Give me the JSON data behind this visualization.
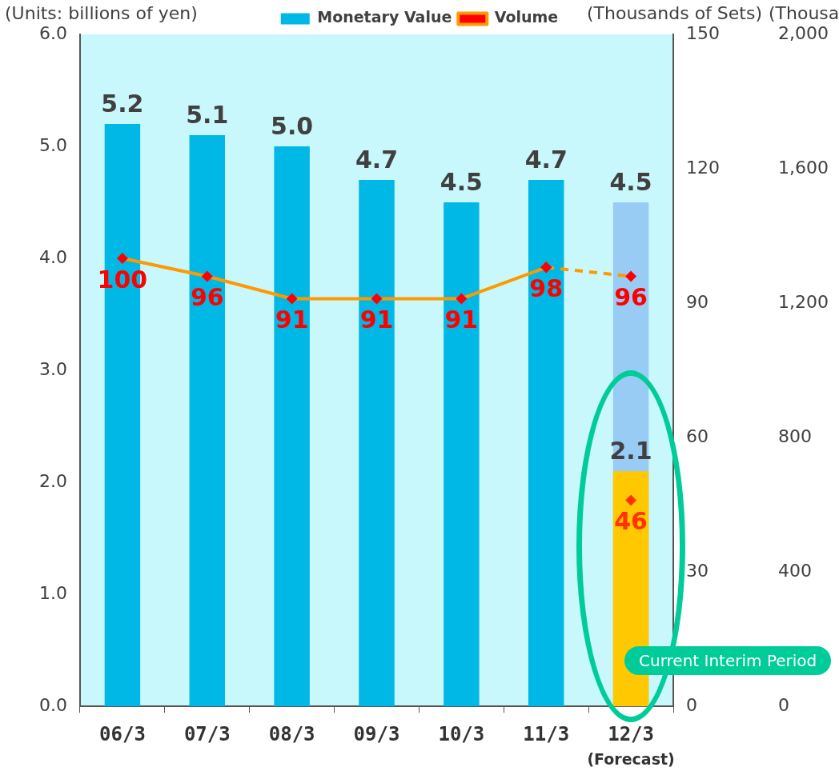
{
  "chart_data": {
    "type": "bar",
    "categories": [
      "06/3",
      "07/3",
      "08/3",
      "09/3",
      "10/3",
      "11/3",
      "12/3"
    ],
    "series": [
      {
        "name": "Monetary Value",
        "colors": [
          "#00b8e6",
          "#00b8e6",
          "#00b8e6",
          "#00b8e6",
          "#00b8e6",
          "#00b8e6",
          "#99ccf5"
        ],
        "values": [
          5.2,
          5.1,
          5.0,
          4.7,
          4.5,
          4.7,
          4.5
        ],
        "value_labels": [
          "5.2",
          "5.1",
          "5.0",
          "4.7",
          "4.5",
          "4.7",
          "4.5"
        ]
      },
      {
        "color": "#ffc800",
        "values": [
          null,
          null,
          null,
          null,
          null,
          null,
          2.1
        ]
      },
      {
        "name": "Volume",
        "type": "line",
        "axis": "y2",
        "color": "#ff9900",
        "marker": "diamond",
        "line_style": "solid",
        "values": [
          100,
          96,
          91,
          91,
          91,
          98,
          null
        ]
      },
      {
        "type": "line",
        "axis": "y2",
        "color": "#ff9900",
        "marker": "diamond",
        "line_style": "dashed",
        "values": [
          null,
          null,
          null,
          null,
          null,
          98,
          96
        ],
        "value_labels": [
          null,
          null,
          null,
          null,
          null,
          null,
          "96"
        ]
      },
      {
        "type": "scatter",
        "axis": "y2",
        "color": "#ff3300",
        "marker": "diamond",
        "x": [
          "12/3"
        ],
        "values": [
          46
        ]
      }
    ],
    "ylabel": "(Units: billions of yen)",
    "y2label": "(Thousands of Sets)",
    "y3label": "(Thousa",
    "ylim": [
      0,
      6
    ],
    "yticks": [
      {
        "value": 0,
        "label": "0.0"
      },
      {
        "value": 1,
        "label": "1.0"
      },
      {
        "value": 2,
        "label": "2.0"
      },
      {
        "value": 3,
        "label": "3.0"
      },
      {
        "value": 4,
        "label": "4.0"
      },
      {
        "value": 5,
        "label": "5.0"
      },
      {
        "value": 6,
        "label": "6.0"
      }
    ],
    "y2lim": [
      0,
      150
    ],
    "y2ticks": [
      0,
      30,
      60,
      90,
      120,
      150
    ],
    "y3lim": [
      0,
      2000
    ],
    "y3ticks": [
      0,
      400,
      800,
      {
        "value": 1200,
        "label": "1,200"
      },
      {
        "value": 1600,
        "label": "1,600"
      },
      {
        "value": 2000,
        "label": "2,000"
      }
    ],
    "data_labels": true,
    "legend": "top",
    "annotations": [
      "Current Interim Period",
      "(Forecast)"
    ]
  }
}
